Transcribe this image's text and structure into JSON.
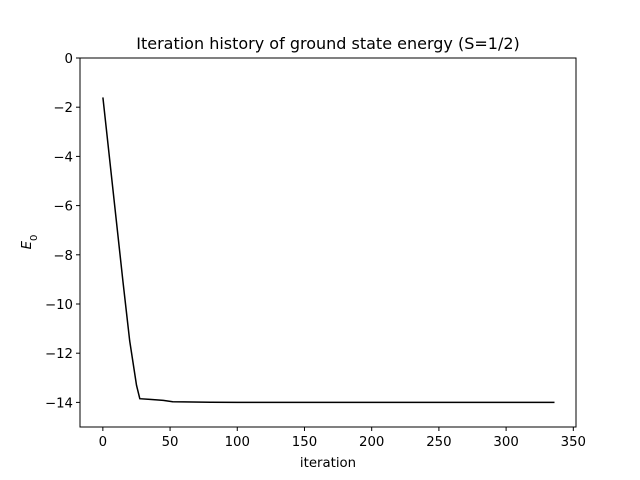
{
  "chart_data": {
    "type": "line",
    "title": "Iteration history of ground state energy (S=1/2)",
    "xlabel": "iteration",
    "ylabel": "E_0",
    "xlim": [
      -17,
      352
    ],
    "ylim": [
      -15,
      0
    ],
    "xticks": [
      0,
      50,
      100,
      150,
      200,
      250,
      300,
      350
    ],
    "yticks": [
      0,
      -2,
      -4,
      -6,
      -8,
      -10,
      -12,
      -14
    ],
    "xtick_labels": [
      "0",
      "50",
      "100",
      "150",
      "200",
      "250",
      "300",
      "350"
    ],
    "ytick_labels": [
      "0",
      "−2",
      "−4",
      "−6",
      "−8",
      "−10",
      "−12",
      "−14"
    ],
    "grid": false,
    "legend": null,
    "series": [
      {
        "name": "E0",
        "color": "#000000",
        "x": [
          0,
          5,
          10,
          15,
          20,
          25,
          27.5,
          35,
          45,
          52,
          60,
          80,
          100,
          150,
          200,
          250,
          300,
          336
        ],
        "y": [
          -1.6,
          -4.1,
          -6.6,
          -9.1,
          -11.5,
          -13.3,
          -13.85,
          -13.88,
          -13.92,
          -13.97,
          -13.98,
          -13.99,
          -14.0,
          -14.0,
          -14.0,
          -14.0,
          -14.0,
          -14.0
        ]
      }
    ]
  }
}
